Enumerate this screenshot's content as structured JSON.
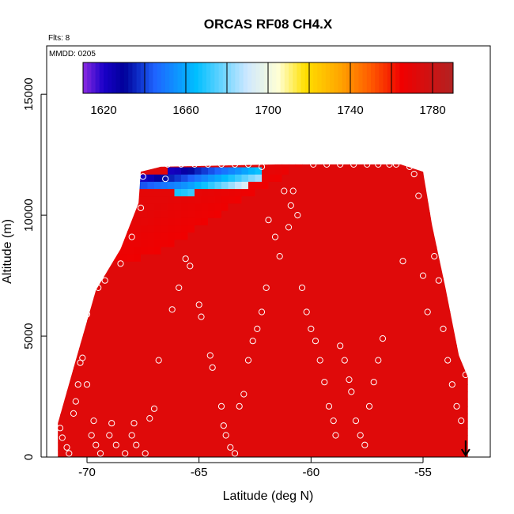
{
  "chart_data": {
    "type": "heatmap",
    "title": "ORCAS RF08 CH4.X",
    "corner_text": [
      "Flts: 8",
      "MMDD: 0205"
    ],
    "xlabel": "Latitude (deg N)",
    "ylabel": "Altitude (m)",
    "xlim": [
      -71.8,
      -52.0
    ],
    "ylim": [
      0,
      17000
    ],
    "x_ticks": [
      -70,
      -65,
      -60,
      -55
    ],
    "x_tick_labels": [
      "-70",
      "-65",
      "-60",
      "-55"
    ],
    "y_ticks": [
      0,
      5000,
      10000,
      15000
    ],
    "y_tick_labels": [
      "0",
      "5000",
      "10000",
      "15000"
    ],
    "colorbar": {
      "range": [
        1610,
        1790
      ],
      "tick_values": [
        1620,
        1660,
        1700,
        1740,
        1780
      ],
      "tick_labels": [
        "1620",
        "1660",
        "1700",
        "1740",
        "1780"
      ],
      "divider_values": [
        1640,
        1660,
        1680,
        1700,
        1720,
        1740,
        1760,
        1780
      ],
      "color_stops": [
        {
          "value": 1610,
          "color": "#8b2be2"
        },
        {
          "value": 1620,
          "color": "#1a00c8"
        },
        {
          "value": 1630,
          "color": "#000099"
        },
        {
          "value": 1645,
          "color": "#1e64ff"
        },
        {
          "value": 1665,
          "color": "#00bfff"
        },
        {
          "value": 1690,
          "color": "#cfe8ff"
        },
        {
          "value": 1705,
          "color": "#ffffd4"
        },
        {
          "value": 1718,
          "color": "#ffe000"
        },
        {
          "value": 1735,
          "color": "#ffa500"
        },
        {
          "value": 1750,
          "color": "#ff5a00"
        },
        {
          "value": 1765,
          "color": "#f00000"
        },
        {
          "value": 1790,
          "color": "#b22222"
        }
      ]
    },
    "field": {
      "background_value": 1772,
      "domain_top": [
        [
          -71.3,
          1400
        ],
        [
          -70.5,
          4000
        ],
        [
          -69.6,
          6900
        ],
        [
          -68.5,
          8600
        ],
        [
          -67.7,
          10500
        ],
        [
          -67.6,
          11800
        ],
        [
          -66.7,
          12000
        ],
        [
          -61.5,
          12100
        ],
        [
          -56.0,
          12100
        ],
        [
          -55.0,
          11800
        ],
        [
          -54.6,
          9600
        ],
        [
          -54.0,
          7000
        ],
        [
          -53.4,
          4200
        ],
        [
          -53.0,
          3300
        ]
      ],
      "domain_bottom": [
        [
          -71.3,
          0
        ],
        [
          -53.0,
          0
        ]
      ],
      "plume": {
        "lower_edge": [
          [
            -68.2,
            8000
          ],
          [
            -66.5,
            8600
          ],
          [
            -64.5,
            9800
          ],
          [
            -62.8,
            10800
          ],
          [
            -61.4,
            11500
          ],
          [
            -60.8,
            12000
          ]
        ],
        "upper_edge": [
          [
            -67.6,
            10000
          ],
          [
            -66.0,
            11000
          ],
          [
            -63.5,
            11600
          ],
          [
            -61.0,
            12100
          ]
        ],
        "core_value": 1740,
        "edge_value": 1765
      },
      "low_values_patch": {
        "region": [
          [
            -67.7,
            11700
          ],
          [
            -65.0,
            12000
          ],
          [
            -62.0,
            12100
          ],
          [
            -62.5,
            11300
          ],
          [
            -65.5,
            10900
          ],
          [
            -67.7,
            11100
          ]
        ],
        "min_value": 1622
      }
    },
    "observations_symbol": "open-circle",
    "observations": [
      {
        "x": -71.2,
        "y": 1200
      },
      {
        "x": -71.1,
        "y": 800
      },
      {
        "x": -70.9,
        "y": 400
      },
      {
        "x": -70.8,
        "y": 150
      },
      {
        "x": -70.6,
        "y": 1800
      },
      {
        "x": -70.5,
        "y": 2300
      },
      {
        "x": -70.4,
        "y": 3000
      },
      {
        "x": -70.3,
        "y": 3900
      },
      {
        "x": -70.2,
        "y": 4100
      },
      {
        "x": -70.0,
        "y": 3000
      },
      {
        "x": -70.0,
        "y": 5900
      },
      {
        "x": -69.8,
        "y": 900
      },
      {
        "x": -69.7,
        "y": 1500
      },
      {
        "x": -69.6,
        "y": 500
      },
      {
        "x": -69.5,
        "y": 7000
      },
      {
        "x": -69.4,
        "y": 150
      },
      {
        "x": -69.2,
        "y": 7300
      },
      {
        "x": -69.0,
        "y": 900
      },
      {
        "x": -68.9,
        "y": 1400
      },
      {
        "x": -68.7,
        "y": 500
      },
      {
        "x": -68.5,
        "y": 8000
      },
      {
        "x": -68.3,
        "y": 150
      },
      {
        "x": -68.0,
        "y": 900
      },
      {
        "x": -67.9,
        "y": 1400
      },
      {
        "x": -67.8,
        "y": 500
      },
      {
        "x": -67.4,
        "y": 150
      },
      {
        "x": -67.2,
        "y": 1600
      },
      {
        "x": -67.0,
        "y": 2000
      },
      {
        "x": -66.8,
        "y": 4000
      },
      {
        "x": -66.5,
        "y": 11500
      },
      {
        "x": -66.2,
        "y": 6100
      },
      {
        "x": -65.9,
        "y": 7000
      },
      {
        "x": -65.6,
        "y": 8200
      },
      {
        "x": -65.4,
        "y": 7900
      },
      {
        "x": -65.0,
        "y": 6300
      },
      {
        "x": -64.9,
        "y": 5800
      },
      {
        "x": -64.5,
        "y": 4200
      },
      {
        "x": -64.4,
        "y": 3700
      },
      {
        "x": -64.0,
        "y": 2100
      },
      {
        "x": -63.9,
        "y": 1300
      },
      {
        "x": -63.8,
        "y": 900
      },
      {
        "x": -63.6,
        "y": 400
      },
      {
        "x": -63.4,
        "y": 150
      },
      {
        "x": -63.2,
        "y": 2100
      },
      {
        "x": -63.0,
        "y": 2600
      },
      {
        "x": -62.8,
        "y": 4000
      },
      {
        "x": -62.6,
        "y": 4800
      },
      {
        "x": -62.4,
        "y": 5300
      },
      {
        "x": -62.2,
        "y": 6000
      },
      {
        "x": -62.0,
        "y": 7000
      },
      {
        "x": -61.9,
        "y": 9800
      },
      {
        "x": -61.6,
        "y": 9100
      },
      {
        "x": -61.4,
        "y": 8300
      },
      {
        "x": -61.2,
        "y": 11000
      },
      {
        "x": -61.0,
        "y": 9500
      },
      {
        "x": -60.9,
        "y": 10400
      },
      {
        "x": -60.8,
        "y": 11000
      },
      {
        "x": -60.6,
        "y": 10000
      },
      {
        "x": -60.4,
        "y": 7000
      },
      {
        "x": -60.2,
        "y": 6000
      },
      {
        "x": -60.0,
        "y": 5300
      },
      {
        "x": -59.8,
        "y": 4800
      },
      {
        "x": -59.6,
        "y": 4000
      },
      {
        "x": -59.4,
        "y": 3100
      },
      {
        "x": -59.2,
        "y": 2100
      },
      {
        "x": -59.0,
        "y": 1500
      },
      {
        "x": -58.9,
        "y": 900
      },
      {
        "x": -58.7,
        "y": 4600
      },
      {
        "x": -58.5,
        "y": 4000
      },
      {
        "x": -58.3,
        "y": 3200
      },
      {
        "x": -58.2,
        "y": 2700
      },
      {
        "x": -58.0,
        "y": 1500
      },
      {
        "x": -57.8,
        "y": 900
      },
      {
        "x": -57.6,
        "y": 500
      },
      {
        "x": -57.4,
        "y": 2100
      },
      {
        "x": -57.2,
        "y": 3100
      },
      {
        "x": -57.0,
        "y": 4000
      },
      {
        "x": -56.8,
        "y": 4900
      },
      {
        "x": -56.5,
        "y": 12100
      },
      {
        "x": -56.2,
        "y": 12100
      },
      {
        "x": -55.9,
        "y": 8100
      },
      {
        "x": -55.6,
        "y": 12000
      },
      {
        "x": -55.4,
        "y": 11700
      },
      {
        "x": -55.2,
        "y": 10800
      },
      {
        "x": -55.0,
        "y": 7500
      },
      {
        "x": -54.8,
        "y": 6000
      },
      {
        "x": -54.5,
        "y": 8300
      },
      {
        "x": -54.3,
        "y": 7300
      },
      {
        "x": -54.1,
        "y": 5300
      },
      {
        "x": -53.9,
        "y": 4000
      },
      {
        "x": -53.7,
        "y": 3000
      },
      {
        "x": -53.5,
        "y": 2100
      },
      {
        "x": -53.3,
        "y": 1500
      },
      {
        "x": -53.1,
        "y": 3400
      },
      {
        "x": -66.4,
        "y": 12100
      },
      {
        "x": -65.8,
        "y": 12100
      },
      {
        "x": -65.2,
        "y": 12100
      },
      {
        "x": -64.6,
        "y": 12100
      },
      {
        "x": -64.0,
        "y": 12100
      },
      {
        "x": -63.4,
        "y": 12100
      },
      {
        "x": -62.8,
        "y": 12100
      },
      {
        "x": -62.2,
        "y": 12000
      },
      {
        "x": -59.9,
        "y": 12100
      },
      {
        "x": -59.3,
        "y": 12100
      },
      {
        "x": -58.7,
        "y": 12100
      },
      {
        "x": -58.1,
        "y": 12100
      },
      {
        "x": -57.5,
        "y": 12100
      },
      {
        "x": -57.0,
        "y": 12100
      },
      {
        "x": -67.5,
        "y": 11600
      },
      {
        "x": -67.6,
        "y": 10300
      },
      {
        "x": -68.0,
        "y": 9100
      }
    ],
    "annotation_arrow": {
      "x": -53.1,
      "direction": "down"
    }
  }
}
